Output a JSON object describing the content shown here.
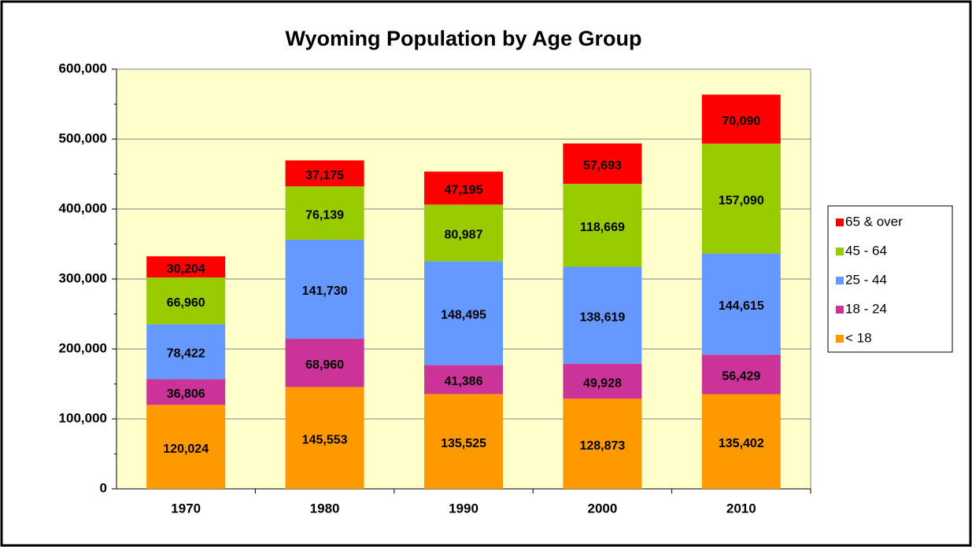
{
  "chart_data": {
    "type": "stacked_bar",
    "title": "Wyoming Population by Age Group",
    "categories": [
      "1970",
      "1980",
      "1990",
      "2000",
      "2010"
    ],
    "series": [
      {
        "name": "< 18",
        "color": "#FF9900",
        "values": [
          120024,
          145553,
          135525,
          128873,
          135402
        ],
        "value_labels": [
          "120,024",
          "145,553",
          "135,525",
          "128,873",
          "135,402"
        ]
      },
      {
        "name": "18 - 24",
        "color": "#CC3399",
        "values": [
          36806,
          68960,
          41386,
          49928,
          56429
        ],
        "value_labels": [
          "36,806",
          "68,960",
          "41,386",
          "49,928",
          "56,429"
        ]
      },
      {
        "name": "25 - 44",
        "color": "#6699FF",
        "values": [
          78422,
          141730,
          148495,
          138619,
          144615
        ],
        "value_labels": [
          "78,422",
          "141,730",
          "148,495",
          "138,619",
          "144,615"
        ]
      },
      {
        "name": "45 - 64",
        "color": "#99CC00",
        "values": [
          66960,
          76139,
          80987,
          118669,
          157090
        ],
        "value_labels": [
          "66,960",
          "76,139",
          "80,987",
          "118,669",
          "157,090"
        ]
      },
      {
        "name": "65 & over",
        "color": "#FF0000",
        "values": [
          30204,
          37175,
          47195,
          57693,
          70090
        ],
        "value_labels": [
          "30,204",
          "37,175",
          "47,195",
          "57,693",
          "70,090"
        ]
      }
    ],
    "ylim": [
      0,
      600000
    ],
    "yticks": [
      0,
      {
        "value": 100000,
        "label": "100,000"
      },
      {
        "value": 200000,
        "label": "200,000"
      },
      {
        "value": 300000,
        "label": "300,000"
      },
      {
        "value": 400000,
        "label": "400,000"
      },
      {
        "value": 500000,
        "label": "500,000"
      },
      {
        "value": 600000,
        "label": "600,000"
      }
    ],
    "grid": true,
    "legend": "right",
    "plot_background": "#FFFFCC"
  }
}
